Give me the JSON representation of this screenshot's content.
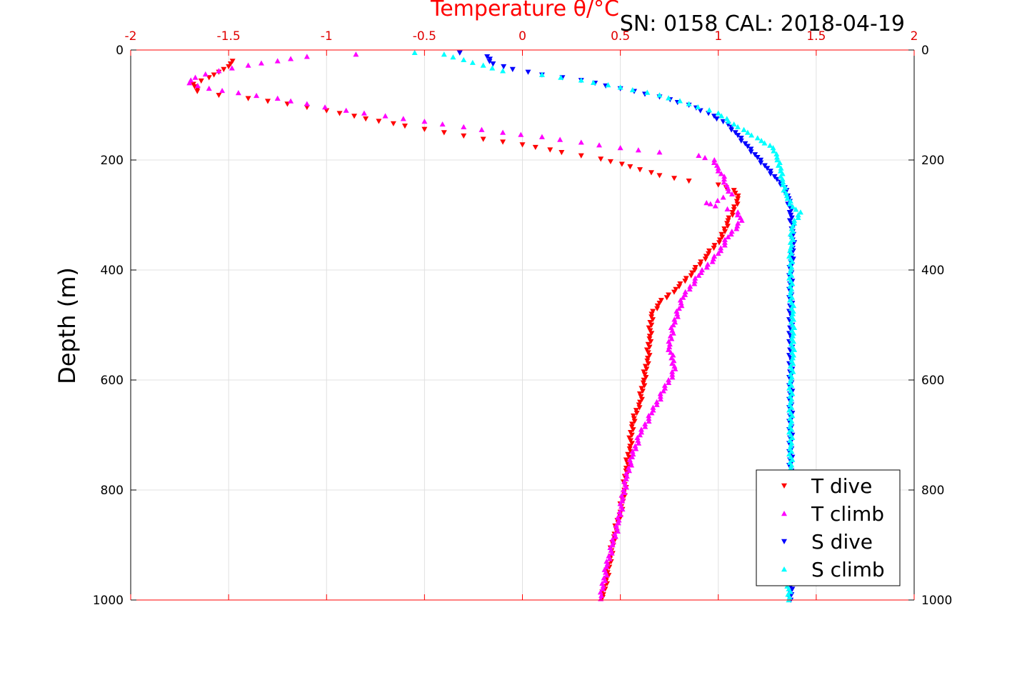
{
  "chart_data": {
    "type": "scatter",
    "title": "Temperature θ/°C",
    "subtitle": "SN: 0158  CAL: 2018-04-19",
    "xlabel": "Temperature θ/°C",
    "ylabel": "Depth (m)",
    "xlim": [
      -2,
      2
    ],
    "ylim": [
      0,
      1000
    ],
    "y_reversed": true,
    "grid": true,
    "x_ticks": [
      "-2",
      "-1.5",
      "-1",
      "-0.5",
      "0",
      "0.5",
      "1",
      "1.5",
      "2"
    ],
    "y_ticks": [
      "0",
      "200",
      "400",
      "600",
      "800",
      "1000"
    ],
    "legend_position": "bottom-right",
    "series": [
      {
        "name": "T dive",
        "color": "#ff0000",
        "marker": "triangle-down",
        "points": [
          [
            -1.48,
            20
          ],
          [
            -1.5,
            30
          ],
          [
            -1.55,
            40
          ],
          [
            -1.6,
            50
          ],
          [
            -1.68,
            62
          ],
          [
            -1.66,
            75
          ],
          [
            -1.55,
            82
          ],
          [
            -1.4,
            88
          ],
          [
            -1.2,
            98
          ],
          [
            -1.0,
            110
          ],
          [
            -0.8,
            125
          ],
          [
            -0.6,
            138
          ],
          [
            -0.4,
            150
          ],
          [
            -0.2,
            162
          ],
          [
            0.0,
            172
          ],
          [
            0.2,
            186
          ],
          [
            0.4,
            198
          ],
          [
            0.55,
            212
          ],
          [
            0.7,
            228
          ],
          [
            0.85,
            238
          ],
          [
            1.0,
            245
          ],
          [
            1.08,
            255
          ],
          [
            1.1,
            270
          ],
          [
            1.08,
            290
          ],
          [
            1.05,
            310
          ],
          [
            1.02,
            340
          ],
          [
            0.95,
            370
          ],
          [
            0.88,
            400
          ],
          [
            0.8,
            430
          ],
          [
            0.7,
            460
          ],
          [
            0.66,
            480
          ],
          [
            0.65,
            520
          ],
          [
            0.64,
            560
          ],
          [
            0.62,
            600
          ],
          [
            0.6,
            640
          ],
          [
            0.56,
            680
          ],
          [
            0.55,
            720
          ],
          [
            0.53,
            760
          ],
          [
            0.52,
            800
          ],
          [
            0.5,
            840
          ],
          [
            0.47,
            880
          ],
          [
            0.45,
            920
          ],
          [
            0.43,
            960
          ],
          [
            0.41,
            995
          ]
        ]
      },
      {
        "name": "T climb",
        "color": "#ff00ff",
        "marker": "triangle-up",
        "points": [
          [
            -0.85,
            8
          ],
          [
            -1.1,
            12
          ],
          [
            -1.25,
            20
          ],
          [
            -1.4,
            28
          ],
          [
            -1.55,
            38
          ],
          [
            -1.67,
            50
          ],
          [
            -1.7,
            60
          ],
          [
            -1.6,
            70
          ],
          [
            -1.45,
            78
          ],
          [
            -1.25,
            88
          ],
          [
            -1.1,
            98
          ],
          [
            -0.9,
            110
          ],
          [
            -0.7,
            120
          ],
          [
            -0.5,
            130
          ],
          [
            -0.3,
            140
          ],
          [
            -0.1,
            150
          ],
          [
            0.1,
            158
          ],
          [
            0.3,
            168
          ],
          [
            0.5,
            178
          ],
          [
            0.7,
            186
          ],
          [
            0.9,
            192
          ],
          [
            0.98,
            200
          ],
          [
            1.0,
            215
          ],
          [
            1.03,
            235
          ],
          [
            1.05,
            252
          ],
          [
            1.07,
            262
          ],
          [
            0.96,
            280
          ],
          [
            0.94,
            278
          ],
          [
            1.1,
            295
          ],
          [
            1.12,
            310
          ],
          [
            1.05,
            340
          ],
          [
            1.0,
            370
          ],
          [
            0.9,
            410
          ],
          [
            0.82,
            450
          ],
          [
            0.8,
            470
          ],
          [
            0.77,
            500
          ],
          [
            0.75,
            540
          ],
          [
            0.78,
            580
          ],
          [
            0.72,
            620
          ],
          [
            0.66,
            660
          ],
          [
            0.6,
            700
          ],
          [
            0.56,
            740
          ],
          [
            0.53,
            780
          ],
          [
            0.51,
            820
          ],
          [
            0.49,
            860
          ],
          [
            0.46,
            900
          ],
          [
            0.43,
            940
          ],
          [
            0.41,
            980
          ],
          [
            0.4,
            998
          ]
        ]
      },
      {
        "name": "S dive",
        "color": "#0000ff",
        "marker": "triangle-down",
        "points": [
          [
            -0.32,
            5
          ],
          [
            -0.18,
            12
          ],
          [
            -0.15,
            25
          ],
          [
            -0.05,
            35
          ],
          [
            0.1,
            45
          ],
          [
            0.3,
            55
          ],
          [
            0.5,
            70
          ],
          [
            0.7,
            85
          ],
          [
            0.85,
            100
          ],
          [
            0.95,
            115
          ],
          [
            1.05,
            135
          ],
          [
            1.1,
            155
          ],
          [
            1.15,
            175
          ],
          [
            1.2,
            195
          ],
          [
            1.25,
            215
          ],
          [
            1.3,
            235
          ],
          [
            1.34,
            250
          ],
          [
            1.36,
            270
          ],
          [
            1.37,
            300
          ],
          [
            1.38,
            330
          ],
          [
            1.38,
            360
          ],
          [
            1.37,
            400
          ],
          [
            1.37,
            440
          ],
          [
            1.37,
            480
          ],
          [
            1.37,
            520
          ],
          [
            1.37,
            560
          ],
          [
            1.37,
            600
          ],
          [
            1.37,
            640
          ],
          [
            1.37,
            680
          ],
          [
            1.37,
            720
          ],
          [
            1.37,
            760
          ],
          [
            1.37,
            800
          ],
          [
            1.37,
            840
          ],
          [
            1.37,
            880
          ],
          [
            1.37,
            920
          ],
          [
            1.37,
            960
          ],
          [
            1.37,
            1000
          ]
        ]
      },
      {
        "name": "S climb",
        "color": "#00ffff",
        "marker": "triangle-up",
        "points": [
          [
            -0.55,
            5
          ],
          [
            -0.4,
            8
          ],
          [
            -0.3,
            18
          ],
          [
            -0.2,
            28
          ],
          [
            -0.1,
            38
          ],
          [
            0.1,
            45
          ],
          [
            0.3,
            55
          ],
          [
            0.5,
            68
          ],
          [
            0.7,
            82
          ],
          [
            0.85,
            98
          ],
          [
            1.0,
            115
          ],
          [
            1.08,
            135
          ],
          [
            1.15,
            150
          ],
          [
            1.22,
            165
          ],
          [
            1.28,
            178
          ],
          [
            1.3,
            195
          ],
          [
            1.32,
            215
          ],
          [
            1.33,
            240
          ],
          [
            1.35,
            265
          ],
          [
            1.38,
            285
          ],
          [
            1.42,
            295
          ],
          [
            1.38,
            320
          ],
          [
            1.37,
            360
          ],
          [
            1.37,
            400
          ],
          [
            1.37,
            440
          ],
          [
            1.38,
            480
          ],
          [
            1.38,
            520
          ],
          [
            1.38,
            560
          ],
          [
            1.37,
            600
          ],
          [
            1.37,
            640
          ],
          [
            1.37,
            680
          ],
          [
            1.37,
            720
          ],
          [
            1.37,
            760
          ],
          [
            1.37,
            800
          ],
          [
            1.37,
            840
          ],
          [
            1.37,
            880
          ],
          [
            1.36,
            920
          ],
          [
            1.36,
            960
          ],
          [
            1.36,
            1000
          ]
        ]
      }
    ]
  }
}
